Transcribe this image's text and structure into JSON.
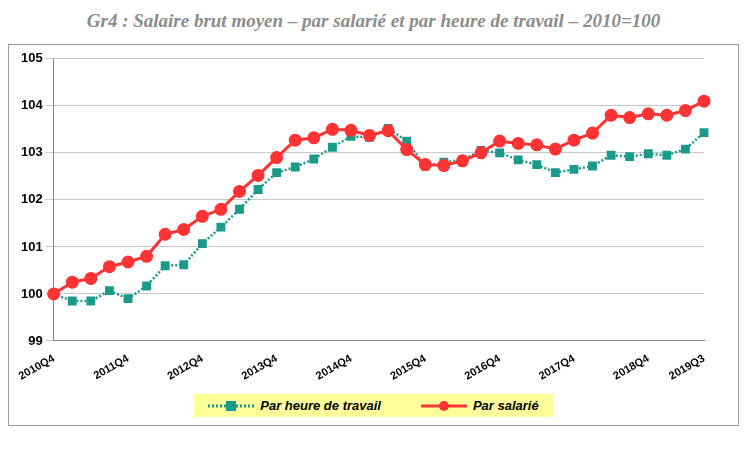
{
  "chart_data": {
    "type": "line",
    "title": "Gr4 : Salaire brut moyen – par salarié et par heure de travail – 2010=100",
    "categories": [
      "2010Q4",
      null,
      null,
      null,
      "2011Q4",
      null,
      null,
      null,
      "2012Q4",
      null,
      null,
      null,
      "2013Q4",
      null,
      null,
      null,
      "2014Q4",
      null,
      null,
      null,
      "2015Q4",
      null,
      null,
      null,
      "2016Q4",
      null,
      null,
      null,
      "2017Q4",
      null,
      null,
      null,
      "2018Q4",
      null,
      null,
      "2019Q3"
    ],
    "series": [
      {
        "name": "Par heure de travail",
        "color": "#1a9a8a",
        "marker": "square",
        "line_style": "dotted",
        "values": [
          100.0,
          99.85,
          99.85,
          100.07,
          99.9,
          100.17,
          100.6,
          100.62,
          101.07,
          101.42,
          101.8,
          102.22,
          102.58,
          102.7,
          102.87,
          103.12,
          103.35,
          103.33,
          103.52,
          103.25,
          102.72,
          102.8,
          102.85,
          103.05,
          103.0,
          102.85,
          102.75,
          102.58,
          102.65,
          102.72,
          102.95,
          102.92,
          102.98,
          102.95,
          103.08,
          103.43
        ]
      },
      {
        "name": "Par salarié",
        "color": "#ff3333",
        "marker": "circle",
        "line_style": "solid",
        "values": [
          100.0,
          100.25,
          100.33,
          100.58,
          100.68,
          100.8,
          101.27,
          101.37,
          101.65,
          101.8,
          102.18,
          102.52,
          102.9,
          103.27,
          103.32,
          103.5,
          103.48,
          103.37,
          103.47,
          103.07,
          102.75,
          102.73,
          102.83,
          103.0,
          103.25,
          103.2,
          103.17,
          103.08,
          103.27,
          103.42,
          103.8,
          103.75,
          103.83,
          103.8,
          103.9,
          104.1
        ]
      }
    ],
    "ylim": [
      99,
      105
    ],
    "yticks": [
      99,
      100,
      101,
      102,
      103,
      104,
      105
    ],
    "grid": true,
    "legend": "bottom"
  }
}
